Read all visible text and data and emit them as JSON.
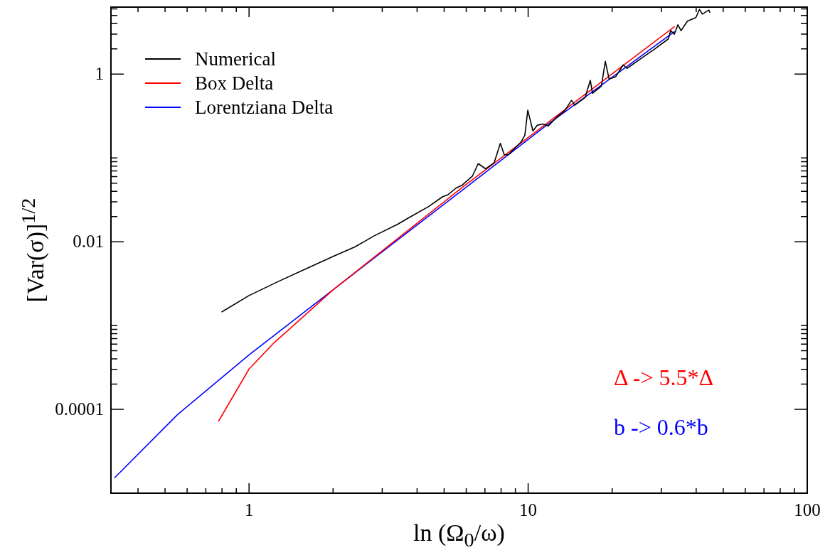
{
  "chart_data": {
    "type": "line",
    "xlabel": "ln (Ω$_{0}$/ω)",
    "ylabel": "[Var(σ)]$^{1/2}$",
    "log": "xy",
    "legend": "top left",
    "marker": "none",
    "line_style": "solid",
    "xlim": [
      0.32,
      100
    ],
    "ylim": [
      1e-05,
      6.3
    ],
    "xticks": [
      {
        "value": 0.4,
        "label": null
      },
      {
        "value": 0.5,
        "label": null
      },
      {
        "value": 0.6,
        "label": null
      },
      {
        "value": 0.7,
        "label": null
      },
      {
        "value": 0.8,
        "label": null
      },
      {
        "value": 0.9,
        "label": null
      },
      1,
      {
        "value": 2,
        "label": null
      },
      {
        "value": 3,
        "label": null
      },
      {
        "value": 4,
        "label": null
      },
      {
        "value": 5,
        "label": null
      },
      {
        "value": 6,
        "label": null
      },
      {
        "value": 7,
        "label": null
      },
      {
        "value": 8,
        "label": null
      },
      {
        "value": 9,
        "label": null
      },
      10,
      {
        "value": 20,
        "label": null
      },
      {
        "value": 30,
        "label": null
      },
      {
        "value": 40,
        "label": null
      },
      {
        "value": 50,
        "label": null
      },
      {
        "value": 60,
        "label": null
      },
      {
        "value": 70,
        "label": null
      },
      {
        "value": 80,
        "label": null
      },
      {
        "value": 90,
        "label": null
      },
      100
    ],
    "yticks": [
      0.0001,
      {
        "value": 0.0002,
        "label": null
      },
      {
        "value": 0.0003,
        "label": null
      },
      {
        "value": 0.0004,
        "label": null
      },
      {
        "value": 0.0005,
        "label": null
      },
      {
        "value": 0.0006,
        "label": null
      },
      {
        "value": 0.0007,
        "label": null
      },
      {
        "value": 0.0008,
        "label": null
      },
      {
        "value": 0.0009,
        "label": null
      },
      {
        "value": 0.001,
        "label": null
      },
      0.01,
      {
        "value": 0.02,
        "label": null
      },
      {
        "value": 0.03,
        "label": null
      },
      {
        "value": 0.04,
        "label": null
      },
      {
        "value": 0.05,
        "label": null
      },
      {
        "value": 0.06,
        "label": null
      },
      {
        "value": 0.07,
        "label": null
      },
      {
        "value": 0.08,
        "label": null
      },
      {
        "value": 0.09,
        "label": null
      },
      {
        "value": 0.1,
        "label": null
      },
      1,
      {
        "value": 2,
        "label": null
      },
      {
        "value": 3,
        "label": null
      },
      {
        "value": 4,
        "label": null
      },
      {
        "value": 5,
        "label": null
      },
      {
        "value": 6,
        "label": null
      }
    ],
    "series": [
      {
        "name": "Numerical",
        "color": "#000000",
        "x": [
          0.8,
          1,
          1.257,
          1.62,
          2.01,
          2.4,
          2.8,
          3.41,
          3.76,
          4.39,
          4.94,
          5.15,
          5.51,
          5.79,
          6.32,
          6.62,
          7.04,
          7.55,
          7.95,
          8.21,
          8.48,
          9.45,
          9.73,
          9.97,
          10.4,
          10.8,
          11.3,
          11.8,
          12.7,
          13.5,
          14.3,
          14.7,
          16,
          16.7,
          17,
          18.3,
          18.9,
          19.5,
          20.6,
          21.9,
          22.6,
          25.2,
          28.2,
          31.8,
          32.4,
          33.4,
          34.4,
          35.3,
          37.2,
          39.9,
          41.1,
          42.1,
          44.4,
          44.8
        ],
        "values": [
          0.00146,
          0.00228,
          0.00329,
          0.00485,
          0.00673,
          0.0087,
          0.0117,
          0.0162,
          0.0196,
          0.0262,
          0.0345,
          0.0362,
          0.0436,
          0.0471,
          0.061,
          0.0855,
          0.0742,
          0.0873,
          0.149,
          0.109,
          0.109,
          0.156,
          0.186,
          0.371,
          0.21,
          0.246,
          0.254,
          0.241,
          0.309,
          0.363,
          0.487,
          0.427,
          0.526,
          0.844,
          0.59,
          0.718,
          1.42,
          0.873,
          0.931,
          1.29,
          1.17,
          1.51,
          1.96,
          2.63,
          3.3,
          2.99,
          3.88,
          3.3,
          4.28,
          4.72,
          5.91,
          5.2,
          5.81,
          5.44
        ]
      },
      {
        "name": "Box Delta",
        "color": "#ff0000",
        "x": [
          0.778,
          1,
          1.233,
          1.47,
          2.01,
          5.79,
          33.4
        ],
        "values": [
          7.25e-05,
          0.000303,
          0.00063,
          0.00106,
          0.00271,
          0.0442,
          3.68
        ]
      },
      {
        "name": "Lorentziana Delta",
        "color": "#0000ff",
        "x": [
          0.33,
          0.552,
          1,
          2.01,
          6.2,
          11.5,
          33.4
        ],
        "values": [
          1.53e-05,
          8.55e-05,
          0.000447,
          0.00271,
          0.0487,
          0.238,
          3.2
        ]
      }
    ],
    "annotations": [
      "Δ -> 5.5*Δ",
      "b -> 0.6*b"
    ]
  }
}
